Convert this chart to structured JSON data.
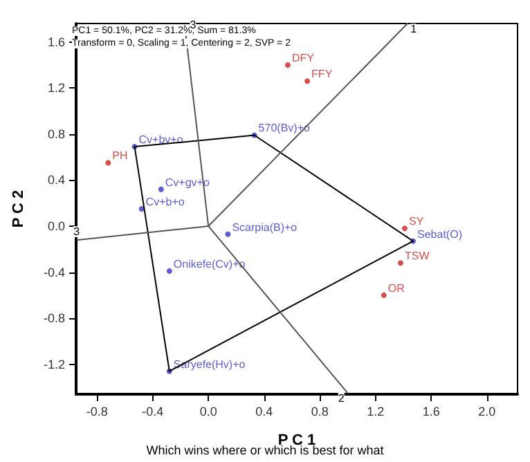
{
  "chart_data": {
    "type": "scatter",
    "xlabel": "P C 1",
    "ylabel": "P C 2",
    "xlim": [
      -0.95,
      2.22
    ],
    "ylim": [
      -1.46,
      1.76
    ],
    "xticks": [
      -0.8,
      -0.4,
      {
        "value": 0,
        "label": "0.0"
      },
      0.4,
      0.8,
      1.2,
      1.6,
      {
        "value": 2,
        "label": "2.0"
      }
    ],
    "yticks": [
      -1.2,
      -0.8,
      -0.4,
      {
        "value": 0,
        "label": "0.0"
      },
      0.4,
      0.8,
      1.2,
      1.6
    ],
    "grid": false,
    "series": [
      {
        "type": "line",
        "color": "#000000",
        "x": [
          -0.53,
          0.33
        ],
        "values": [
          0.69,
          0.79
        ]
      },
      {
        "type": "line",
        "color": "#000000",
        "x": [
          0.33,
          1.47
        ],
        "values": [
          0.79,
          -0.13
        ]
      },
      {
        "type": "line",
        "color": "#000000",
        "x": [
          1.47,
          -0.28
        ],
        "values": [
          -0.13,
          -1.26
        ]
      },
      {
        "type": "line",
        "color": "#000000",
        "x": [
          -0.28,
          -0.53
        ],
        "values": [
          -1.26,
          0.69
        ]
      },
      {
        "type": "line",
        "color": "#555555",
        "x": [
          0.0,
          1.43
        ],
        "values": [
          0.0,
          1.76
        ]
      },
      {
        "type": "line",
        "color": "#555555",
        "x": [
          0.0,
          1.0
        ],
        "values": [
          0.0,
          -1.45
        ]
      },
      {
        "type": "line",
        "color": "#555555",
        "x": [
          0.0,
          -0.94
        ],
        "values": [
          0.0,
          -0.12
        ]
      },
      {
        "type": "line",
        "color": "#555555",
        "x": [
          0.0,
          -0.17
        ],
        "values": [
          0.0,
          1.74
        ]
      },
      {
        "name": "Cv+bv+o",
        "color": "#3333cc",
        "x": [
          -0.53
        ],
        "values": [
          0.69
        ]
      },
      {
        "name": "570(Bv)+o",
        "color": "#3333cc",
        "x": [
          0.33
        ],
        "values": [
          0.79
        ]
      },
      {
        "name": "Cv+gv+o",
        "color": "#3333cc",
        "x": [
          -0.34
        ],
        "values": [
          0.32
        ]
      },
      {
        "name": "Cv+b+o",
        "color": "#3333cc",
        "x": [
          -0.48
        ],
        "values": [
          0.15
        ]
      },
      {
        "name": "Scarpia(B)+o",
        "color": "#3333cc",
        "x": [
          0.14
        ],
        "values": [
          -0.07
        ]
      },
      {
        "name": "Onikefe(Cv)+o",
        "color": "#3333cc",
        "x": [
          -0.28
        ],
        "values": [
          -0.39
        ]
      },
      {
        "name": "Saryefe(Hv)+o",
        "color": "#3333cc",
        "x": [
          -0.28
        ],
        "values": [
          -1.26
        ]
      },
      {
        "name": "Sebat(O)",
        "color": "#3333cc",
        "x": [
          1.47
        ],
        "values": [
          -0.13
        ]
      },
      {
        "name": "DFY",
        "color": "#cc2222",
        "x": [
          0.57
        ],
        "values": [
          1.4
        ]
      },
      {
        "name": "FFY",
        "color": "#cc2222",
        "x": [
          0.71
        ],
        "values": [
          1.26
        ]
      },
      {
        "name": "PH",
        "color": "#cc2222",
        "x": [
          -0.72
        ],
        "values": [
          0.55
        ]
      },
      {
        "name": "SY",
        "color": "#cc2222",
        "x": [
          1.41
        ],
        "values": [
          -0.02
        ]
      },
      {
        "name": "TSW",
        "color": "#cc2222",
        "x": [
          1.38
        ],
        "values": [
          -0.32
        ]
      },
      {
        "name": "OR",
        "color": "#cc2222",
        "x": [
          1.26
        ],
        "values": [
          -0.6
        ]
      }
    ],
    "annotations": [
      "PC1 = 50.1%, PC2 = 31.2%, Sum = 81.3%",
      "Transform = 0, Scaling = 1, Centering = 2, SVP = 2",
      {
        "text": "1",
        "x": 1.43,
        "y": 1.76
      },
      {
        "text": "2",
        "x": 1.0,
        "y": -1.45
      },
      {
        "text": "3",
        "x": -0.94,
        "y": -0.12
      },
      {
        "text": "3",
        "x": -0.17,
        "y": 1.74
      },
      "Which wins where or which is best for what"
    ]
  }
}
